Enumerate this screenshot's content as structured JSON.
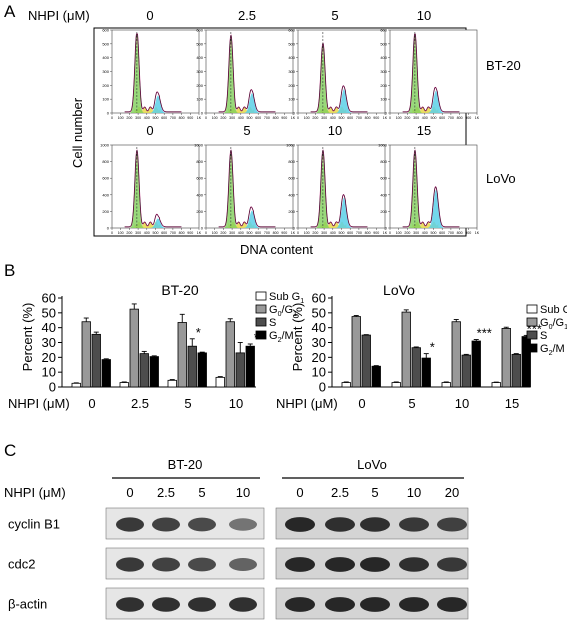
{
  "panel_a": {
    "label": "A",
    "dose_label": "NHPI (μM)",
    "y_label": "Cell number",
    "x_label": "DNA content",
    "x_ticks": [
      "0",
      "100",
      "200",
      "300",
      "400",
      "500",
      "600",
      "700",
      "800",
      "900",
      "1K"
    ],
    "rows": [
      {
        "cell_line": "BT-20",
        "doses": [
          "0",
          "2.5",
          "5",
          "10"
        ],
        "y_ticks": [
          "0",
          "100",
          "200",
          "300",
          "400",
          "500",
          "600"
        ],
        "g1_peak": [
          1.0,
          0.95,
          0.85,
          0.98
        ],
        "g2_peak": [
          0.22,
          0.25,
          0.3,
          0.28
        ]
      },
      {
        "cell_line": "LoVo",
        "doses": [
          "0",
          "5",
          "10",
          "15"
        ],
        "y_ticks": [
          "0",
          "200",
          "400",
          "600",
          "800",
          "1000"
        ],
        "g1_peak": [
          0.95,
          0.95,
          0.95,
          0.95
        ],
        "g2_peak": [
          0.12,
          0.22,
          0.38,
          0.48
        ]
      }
    ]
  },
  "panel_b": {
    "label": "B",
    "dose_label": "NHPI (μM)",
    "colors": {
      "sub_g1": "#ffffff",
      "g0g1": "#999999",
      "s": "#4d4d4d",
      "g2m": "#000000"
    }
  },
  "chart_data": [
    {
      "type": "bar",
      "title": "BT-20",
      "xlabel": "NHPI (μM)",
      "ylabel": "Percent (%)",
      "ylim": [
        0,
        60
      ],
      "yticks": [
        "0",
        "10",
        "20",
        "30",
        "40",
        "50",
        "60"
      ],
      "categories": [
        "0",
        "2.5",
        "5",
        "10"
      ],
      "series": [
        {
          "key": "sub_g1",
          "values": [
            2.5,
            3.0,
            4.5,
            6.5
          ],
          "errors": [
            0.3,
            0.4,
            0.5,
            0.5
          ]
        },
        {
          "key": "g0g1",
          "values": [
            44,
            52.5,
            43.5,
            44
          ],
          "errors": [
            2.5,
            3.5,
            5.5,
            2.0
          ]
        },
        {
          "key": "s",
          "values": [
            35.5,
            22.5,
            27.5,
            23
          ],
          "errors": [
            1.5,
            1.5,
            5.0,
            7.0
          ]
        },
        {
          "key": "g2m",
          "values": [
            18.5,
            20.5,
            23,
            27.5
          ],
          "errors": [
            0.5,
            0.5,
            0.5,
            1.5
          ]
        }
      ],
      "legend": [
        {
          "key": "sub_g1",
          "text": "Sub G",
          "sub": "1"
        },
        {
          "key": "g0g1",
          "text": "G",
          "sub": "0",
          "text2": "/G",
          "sub2": "1"
        },
        {
          "key": "s",
          "text": "S"
        },
        {
          "key": "g2m",
          "text": "G",
          "sub": "2",
          "text2": "/M"
        }
      ],
      "legend_position": "top-right",
      "annotations": [
        {
          "category": 2,
          "series": 2,
          "text": "*"
        },
        {
          "category": 3,
          "series": 3,
          "text": "*"
        }
      ]
    },
    {
      "type": "bar",
      "title": "LoVo",
      "xlabel": "NHPI (μM)",
      "ylabel": "Percent (%)",
      "ylim": [
        0,
        60
      ],
      "yticks": [
        "0",
        "10",
        "20",
        "30",
        "40",
        "50",
        "60"
      ],
      "categories": [
        "0",
        "5",
        "10",
        "15"
      ],
      "series": [
        {
          "key": "sub_g1",
          "values": [
            3,
            3,
            3,
            3
          ],
          "errors": [
            0.4,
            0.4,
            0.4,
            0.3
          ]
        },
        {
          "key": "g0g1",
          "values": [
            47.5,
            50.5,
            44,
            39.5
          ],
          "errors": [
            0.7,
            1.5,
            1.5,
            0.8
          ]
        },
        {
          "key": "s",
          "values": [
            35,
            26.5,
            21.5,
            22
          ],
          "errors": [
            0.3,
            0.5,
            0.5,
            0.5
          ]
        },
        {
          "key": "g2m",
          "values": [
            14,
            19.5,
            31,
            34
          ],
          "errors": [
            0.4,
            3.0,
            1.0,
            0.8
          ]
        }
      ],
      "legend": [
        {
          "key": "sub_g1",
          "text": "Sub G",
          "sub": "1"
        },
        {
          "key": "g0g1",
          "text": "G",
          "sub": "0",
          "text2": "/G",
          "sub2": "1"
        },
        {
          "key": "s",
          "text": "S"
        },
        {
          "key": "g2m",
          "text": "G",
          "sub": "2",
          "text2": "/M"
        }
      ],
      "legend_position": "top-right",
      "annotations": [
        {
          "category": 1,
          "series": 3,
          "text": "*"
        },
        {
          "category": 2,
          "series": 3,
          "text": "***"
        },
        {
          "category": 3,
          "series": 3,
          "text": "***"
        }
      ]
    }
  ],
  "panel_c": {
    "label": "C",
    "dose_label": "NHPI (μM)",
    "groups": [
      {
        "cell_line": "BT-20",
        "doses": [
          "0",
          "2.5",
          "5",
          "10"
        ],
        "blots": [
          {
            "protein": "cyclin B1",
            "intensity": [
              0.85,
              0.8,
              0.75,
              0.5
            ]
          },
          {
            "protein": "cdc2",
            "intensity": [
              0.85,
              0.8,
              0.75,
              0.6
            ]
          },
          {
            "protein": "β-actin",
            "intensity": [
              0.9,
              0.9,
              0.9,
              0.9
            ]
          }
        ]
      },
      {
        "cell_line": "LoVo",
        "doses": [
          "0",
          "2.5",
          "5",
          "10",
          "20"
        ],
        "blots": [
          {
            "protein": "cyclin B1",
            "intensity": [
              0.95,
              0.9,
              0.9,
              0.85,
              0.8
            ]
          },
          {
            "protein": "cdc2",
            "intensity": [
              0.95,
              0.95,
              0.95,
              0.9,
              0.85
            ]
          },
          {
            "protein": "β-actin",
            "intensity": [
              0.95,
              0.95,
              0.95,
              0.95,
              0.95
            ]
          }
        ]
      }
    ]
  }
}
